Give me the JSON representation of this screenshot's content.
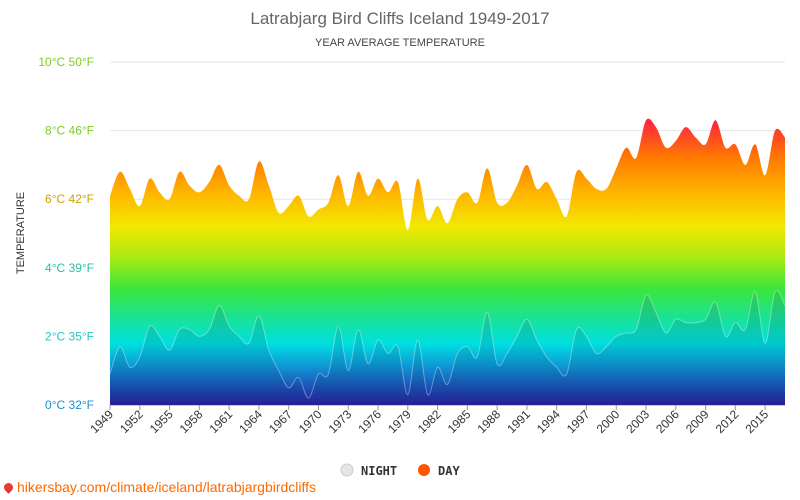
{
  "chart_data": {
    "type": "area",
    "title": "Latrabjarg Bird Cliffs Iceland 1949-2017",
    "subtitle": "YEAR AVERAGE TEMPERATURE",
    "ylabel": "TEMPERATURE",
    "ylim": [
      0,
      10
    ],
    "yticks": [
      {
        "value": 0,
        "label": "0°C 32°F",
        "color": "#1b8fd1"
      },
      {
        "value": 2,
        "label": "2°C 35°F",
        "color": "#26c6c6"
      },
      {
        "value": 4,
        "label": "4°C 39°F",
        "color": "#22c3a0"
      },
      {
        "value": 6,
        "label": "6°C 42°F",
        "color": "#c9a400"
      },
      {
        "value": 8,
        "label": "8°C 46°F",
        "color": "#7ccf1c"
      },
      {
        "value": 10,
        "label": "10°C 50°F",
        "color": "#7ccf1c"
      }
    ],
    "x": [
      1949,
      1950,
      1951,
      1952,
      1953,
      1954,
      1955,
      1956,
      1957,
      1958,
      1959,
      1960,
      1961,
      1962,
      1963,
      1964,
      1965,
      1966,
      1967,
      1968,
      1969,
      1970,
      1971,
      1972,
      1973,
      1974,
      1975,
      1976,
      1977,
      1978,
      1979,
      1980,
      1981,
      1982,
      1983,
      1984,
      1985,
      1986,
      1987,
      1988,
      1989,
      1990,
      1991,
      1992,
      1993,
      1994,
      1995,
      1996,
      1997,
      1998,
      1999,
      2000,
      2001,
      2002,
      2003,
      2004,
      2005,
      2006,
      2007,
      2008,
      2009,
      2010,
      2011,
      2012,
      2013,
      2014,
      2015,
      2016,
      2017
    ],
    "xtick_labels": [
      "1949",
      "1952",
      "1955",
      "1958",
      "1961",
      "1964",
      "1967",
      "1970",
      "1973",
      "1976",
      "1979",
      "1982",
      "1985",
      "1988",
      "1991",
      "1994",
      "1997",
      "2000",
      "2003",
      "2006",
      "2009",
      "2012",
      "2015"
    ],
    "series": [
      {
        "name": "DAY",
        "color": "#ff5500",
        "values": [
          6.1,
          6.8,
          6.3,
          5.8,
          6.6,
          6.2,
          6.0,
          6.8,
          6.4,
          6.2,
          6.5,
          7.0,
          6.4,
          6.1,
          6.0,
          7.1,
          6.4,
          5.6,
          5.8,
          6.1,
          5.5,
          5.7,
          5.9,
          6.7,
          5.8,
          6.8,
          6.1,
          6.6,
          6.2,
          6.5,
          5.1,
          6.6,
          5.4,
          5.8,
          5.3,
          6.0,
          6.2,
          5.9,
          6.9,
          5.9,
          5.9,
          6.4,
          7.0,
          6.3,
          6.5,
          6.0,
          5.5,
          6.8,
          6.6,
          6.3,
          6.3,
          6.9,
          7.5,
          7.2,
          8.3,
          8.1,
          7.5,
          7.7,
          8.1,
          7.8,
          7.6,
          8.3,
          7.5,
          7.6,
          7.0,
          7.6,
          6.7,
          8.0,
          7.8
        ]
      },
      {
        "name": "NIGHT",
        "color": "#dddddd",
        "values": [
          0.9,
          1.7,
          1.1,
          1.4,
          2.3,
          2.0,
          1.6,
          2.2,
          2.2,
          2.0,
          2.2,
          2.9,
          2.3,
          2.0,
          1.8,
          2.6,
          1.6,
          1.0,
          0.5,
          0.8,
          0.2,
          0.9,
          0.9,
          2.3,
          1.0,
          2.2,
          1.2,
          1.9,
          1.5,
          1.7,
          0.3,
          1.9,
          0.3,
          1.1,
          0.6,
          1.5,
          1.7,
          1.4,
          2.7,
          1.2,
          1.5,
          2.0,
          2.5,
          1.9,
          1.4,
          1.1,
          0.9,
          2.2,
          2.0,
          1.5,
          1.7,
          2.0,
          2.1,
          2.2,
          3.2,
          2.7,
          2.1,
          2.5,
          2.4,
          2.4,
          2.5,
          3.0,
          2.0,
          2.4,
          2.2,
          3.3,
          1.8,
          3.3,
          2.9
        ]
      }
    ],
    "legend": {
      "placement": "bottom-center"
    },
    "grid": true
  },
  "legend_items": [
    {
      "name": "NIGHT",
      "color": "#e6e6e6"
    },
    {
      "name": "DAY",
      "color": "#ff5500"
    }
  ],
  "source": "hikersbay.com/climate/iceland/latrabjargbirdcliffs"
}
